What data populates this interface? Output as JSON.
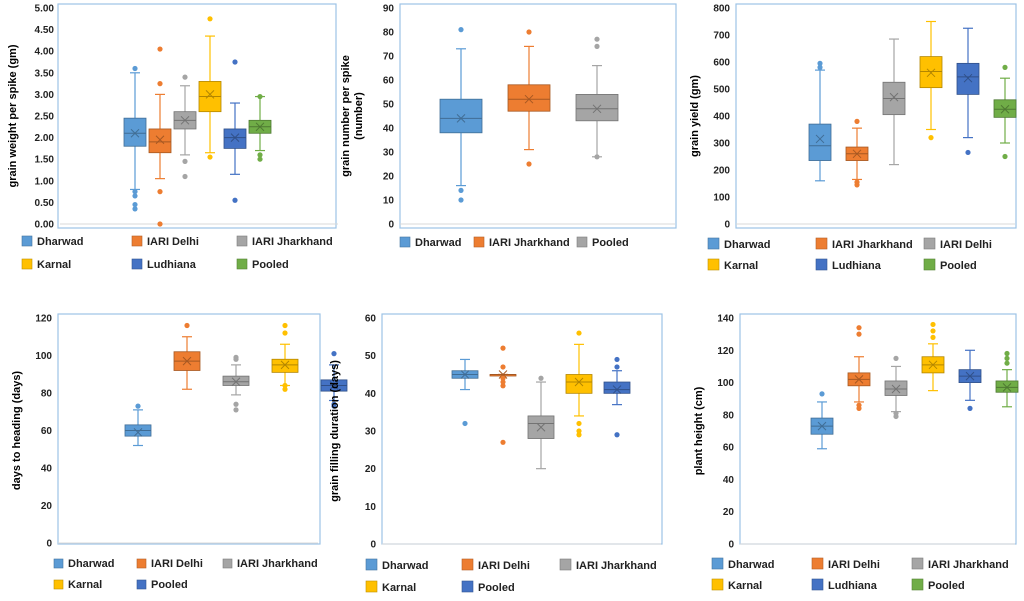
{
  "colors": {
    "Dharwad": "#5b9bd5",
    "IARI Delhi": "#ed7d31",
    "IARI Jharkhand": "#a5a5a5",
    "Karnal": "#ffc000",
    "Ludhiana": "#4472c4",
    "Pooled": "#70ad47",
    "frame": "#9dc3e6"
  },
  "chart_data": [
    {
      "type": "box",
      "ylabel": "grain weight per spike (gm)",
      "ylim": [
        0,
        5
      ],
      "yticks": [
        0,
        0.5,
        1,
        1.5,
        2,
        2.5,
        3,
        3.5,
        4,
        4.5,
        5
      ],
      "tick_labels": [
        "0.00",
        "0.50",
        "1.00",
        "1.50",
        "2.00",
        "2.50",
        "3.00",
        "3.50",
        "4.00",
        "4.50",
        "5.00"
      ],
      "series": [
        {
          "name": "Dharwad",
          "color_key": "Dharwad",
          "min": 0.8,
          "q1": 1.8,
          "median": 2.1,
          "mean": 2.1,
          "q3": 2.45,
          "max": 3.5,
          "outliers": [
            0.35,
            0.45,
            0.65,
            0.75,
            3.6
          ]
        },
        {
          "name": "IARI Delhi",
          "color_key": "IARI Delhi",
          "min": 1.05,
          "q1": 1.65,
          "median": 1.9,
          "mean": 1.95,
          "q3": 2.2,
          "max": 3.0,
          "outliers": [
            0.0,
            0.75,
            3.25,
            4.05
          ]
        },
        {
          "name": "IARI Jharkhand",
          "color_key": "IARI Jharkhand",
          "min": 1.6,
          "q1": 2.2,
          "median": 2.4,
          "mean": 2.4,
          "q3": 2.6,
          "max": 3.2,
          "outliers": [
            1.1,
            1.45,
            3.4
          ]
        },
        {
          "name": "Karnal",
          "color_key": "Karnal",
          "min": 1.65,
          "q1": 2.6,
          "median": 2.95,
          "mean": 3.0,
          "q3": 3.3,
          "max": 4.35,
          "outliers": [
            1.55,
            4.75
          ]
        },
        {
          "name": "Ludhiana",
          "color_key": "Ludhiana",
          "min": 1.15,
          "q1": 1.75,
          "median": 2.0,
          "mean": 2.0,
          "q3": 2.2,
          "max": 2.8,
          "outliers": [
            0.55,
            3.75
          ]
        },
        {
          "name": "Pooled",
          "color_key": "Pooled",
          "min": 1.7,
          "q1": 2.1,
          "median": 2.25,
          "mean": 2.25,
          "q3": 2.4,
          "max": 2.95,
          "outliers": [
            1.5,
            1.6,
            2.95
          ]
        }
      ],
      "legend": [
        "Dharwad",
        "IARI Delhi",
        "IARI Jharkhand",
        "Karnal",
        "Ludhiana",
        "Pooled"
      ]
    },
    {
      "type": "box",
      "ylabel": "grain number per spike (number)",
      "ylim": [
        0,
        90
      ],
      "yticks": [
        0,
        10,
        20,
        30,
        40,
        50,
        60,
        70,
        80,
        90
      ],
      "tick_labels": [
        "0",
        "10",
        "20",
        "30",
        "40",
        "50",
        "60",
        "70",
        "80",
        "90"
      ],
      "series": [
        {
          "name": "Dharwad",
          "color_key": "Dharwad",
          "min": 16,
          "q1": 38,
          "median": 44,
          "mean": 44,
          "q3": 52,
          "max": 73,
          "outliers": [
            10,
            14,
            81
          ]
        },
        {
          "name": "IARI Jharkhand",
          "color_key": "IARI Delhi",
          "min": 31,
          "q1": 47,
          "median": 52,
          "mean": 52,
          "q3": 58,
          "max": 74,
          "outliers": [
            25,
            80
          ]
        },
        {
          "name": "Pooled",
          "color_key": "IARI Jharkhand",
          "min": 28,
          "q1": 43,
          "median": 48,
          "mean": 48,
          "q3": 54,
          "max": 66,
          "outliers": [
            28,
            74,
            77
          ]
        }
      ],
      "legend": [
        "Dharwad",
        "IARI Jharkhand",
        "Pooled"
      ],
      "legend_color_keys": [
        "Dharwad",
        "IARI Delhi",
        "IARI Jharkhand"
      ]
    },
    {
      "type": "box",
      "ylabel": "grain yield (gm)",
      "ylim": [
        0,
        800
      ],
      "yticks": [
        0,
        100,
        200,
        300,
        400,
        500,
        600,
        700,
        800
      ],
      "tick_labels": [
        "0",
        "100",
        "200",
        "300",
        "400",
        "500",
        "600",
        "700",
        "800"
      ],
      "series": [
        {
          "name": "Dharwad",
          "color_key": "Dharwad",
          "min": 160,
          "q1": 235,
          "median": 290,
          "mean": 315,
          "q3": 370,
          "max": 570,
          "outliers": [
            580,
            595
          ]
        },
        {
          "name": "IARI Jharkhand",
          "color_key": "IARI Delhi",
          "min": 165,
          "q1": 235,
          "median": 260,
          "mean": 260,
          "q3": 285,
          "max": 355,
          "outliers": [
            145,
            155,
            380
          ]
        },
        {
          "name": "IARI Delhi",
          "color_key": "IARI Jharkhand",
          "min": 220,
          "q1": 405,
          "median": 465,
          "mean": 470,
          "q3": 525,
          "max": 685,
          "outliers": []
        },
        {
          "name": "Karnal",
          "color_key": "Karnal",
          "min": 350,
          "q1": 505,
          "median": 565,
          "mean": 560,
          "q3": 620,
          "max": 750,
          "outliers": [
            320
          ]
        },
        {
          "name": "Ludhiana",
          "color_key": "Ludhiana",
          "min": 320,
          "q1": 480,
          "median": 545,
          "mean": 540,
          "q3": 595,
          "max": 725,
          "outliers": [
            265
          ]
        },
        {
          "name": "Pooled",
          "color_key": "Pooled",
          "min": 300,
          "q1": 395,
          "median": 425,
          "mean": 425,
          "q3": 460,
          "max": 540,
          "outliers": [
            250,
            580
          ]
        }
      ],
      "legend": [
        "Dharwad",
        "IARI Jharkhand",
        "IARI Delhi",
        "Karnal",
        "Ludhiana",
        "Pooled"
      ],
      "legend_color_keys": [
        "Dharwad",
        "IARI Delhi",
        "IARI Jharkhand",
        "Karnal",
        "Ludhiana",
        "Pooled"
      ]
    },
    {
      "type": "box",
      "ylabel": "days to heading (days)",
      "ylim": [
        0,
        120
      ],
      "yticks": [
        0,
        20,
        40,
        60,
        80,
        100,
        120
      ],
      "tick_labels": [
        "0",
        "20",
        "40",
        "60",
        "80",
        "100",
        "120"
      ],
      "series": [
        {
          "name": "Dharwad",
          "color_key": "Dharwad",
          "min": 52,
          "q1": 57,
          "median": 60,
          "mean": 59,
          "q3": 63,
          "max": 71,
          "outliers": [
            73
          ]
        },
        {
          "name": "IARI Delhi",
          "color_key": "IARI Delhi",
          "min": 82,
          "q1": 92,
          "median": 97,
          "mean": 97,
          "q3": 102,
          "max": 110,
          "outliers": [
            116
          ]
        },
        {
          "name": "IARI Jharkhand",
          "color_key": "IARI Jharkhand",
          "min": 79,
          "q1": 84,
          "median": 86,
          "mean": 86,
          "q3": 89,
          "max": 95,
          "outliers": [
            71,
            74,
            98,
            99
          ]
        },
        {
          "name": "Karnal",
          "color_key": "Karnal",
          "min": 84,
          "q1": 91,
          "median": 95,
          "mean": 95,
          "q3": 98,
          "max": 106,
          "outliers": [
            82,
            84,
            112,
            116
          ]
        },
        {
          "name": "Pooled",
          "color_key": "Ludhiana",
          "min": 76,
          "q1": 81,
          "median": 84,
          "mean": 84,
          "q3": 87,
          "max": 95,
          "outliers": [
            73,
            74,
            101
          ]
        }
      ],
      "legend": [
        "Dharwad",
        "IARI Delhi",
        "IARI Jharkhand",
        "Karnal",
        "Pooled"
      ],
      "legend_color_keys": [
        "Dharwad",
        "IARI Delhi",
        "IARI Jharkhand",
        "Karnal",
        "Ludhiana"
      ]
    },
    {
      "type": "box",
      "ylabel": "grain filling duration (days)",
      "ylim": [
        0,
        60
      ],
      "yticks": [
        0,
        10,
        20,
        30,
        40,
        50,
        60
      ],
      "tick_labels": [
        "0",
        "10",
        "20",
        "30",
        "40",
        "50",
        "60"
      ],
      "series": [
        {
          "name": "Dharwad",
          "color_key": "Dharwad",
          "min": 41,
          "q1": 44,
          "median": 45,
          "mean": 45,
          "q3": 46,
          "max": 49,
          "outliers": [
            32
          ]
        },
        {
          "name": "IARI Delhi",
          "color_key": "IARI Delhi",
          "min": 45,
          "q1": 45,
          "median": 45,
          "mean": 45,
          "q3": 45,
          "max": 45,
          "outliers": [
            27,
            42,
            43,
            44,
            47,
            52
          ]
        },
        {
          "name": "IARI Jharkhand",
          "color_key": "IARI Jharkhand",
          "min": 20,
          "q1": 28,
          "median": 32,
          "mean": 31,
          "q3": 34,
          "max": 43,
          "outliers": [
            44
          ]
        },
        {
          "name": "Karnal",
          "color_key": "Karnal",
          "min": 34,
          "q1": 40,
          "median": 43,
          "mean": 43,
          "q3": 45,
          "max": 53,
          "outliers": [
            29,
            30,
            32,
            56
          ]
        },
        {
          "name": "Pooled",
          "color_key": "Ludhiana",
          "min": 37,
          "q1": 40,
          "median": 41,
          "mean": 41,
          "q3": 43,
          "max": 46,
          "outliers": [
            29,
            47,
            49
          ]
        }
      ],
      "legend": [
        "Dharwad",
        "IARI Delhi",
        "IARI Jharkhand",
        "Karnal",
        "Pooled"
      ],
      "legend_color_keys": [
        "Dharwad",
        "IARI Delhi",
        "IARI Jharkhand",
        "Karnal",
        "Ludhiana"
      ]
    },
    {
      "type": "box",
      "ylabel": "plant height (cm)",
      "ylim": [
        0,
        140
      ],
      "yticks": [
        0,
        20,
        40,
        60,
        80,
        100,
        120,
        140
      ],
      "tick_labels": [
        "0",
        "20",
        "40",
        "60",
        "80",
        "100",
        "120",
        "140"
      ],
      "series": [
        {
          "name": "Dharwad",
          "color_key": "Dharwad",
          "min": 59,
          "q1": 68,
          "median": 73,
          "mean": 73,
          "q3": 78,
          "max": 88,
          "outliers": [
            93
          ]
        },
        {
          "name": "IARI Delhi",
          "color_key": "IARI Delhi",
          "min": 88,
          "q1": 98,
          "median": 102,
          "mean": 102,
          "q3": 106,
          "max": 116,
          "outliers": [
            84,
            86,
            130,
            134
          ]
        },
        {
          "name": "IARI Jharkhand",
          "color_key": "IARI Jharkhand",
          "min": 82,
          "q1": 92,
          "median": 96,
          "mean": 96,
          "q3": 101,
          "max": 110,
          "outliers": [
            79,
            81,
            115
          ]
        },
        {
          "name": "Karnal",
          "color_key": "Karnal",
          "min": 95,
          "q1": 106,
          "median": 111,
          "mean": 111,
          "q3": 116,
          "max": 124,
          "outliers": [
            128,
            132,
            136
          ]
        },
        {
          "name": "Ludhiana",
          "color_key": "Ludhiana",
          "min": 89,
          "q1": 100,
          "median": 104,
          "mean": 104,
          "q3": 108,
          "max": 120,
          "outliers": [
            84
          ]
        },
        {
          "name": "Pooled",
          "color_key": "Pooled",
          "min": 85,
          "q1": 94,
          "median": 97,
          "mean": 97,
          "q3": 101,
          "max": 108,
          "outliers": [
            112,
            115,
            118
          ]
        }
      ],
      "legend": [
        "Dharwad",
        "IARI Delhi",
        "IARI Jharkhand",
        "Karnal",
        "Ludhiana",
        "Pooled"
      ],
      "legend_color_keys": [
        "Dharwad",
        "IARI Delhi",
        "IARI Jharkhand",
        "Karnal",
        "Ludhiana",
        "Pooled"
      ]
    }
  ]
}
